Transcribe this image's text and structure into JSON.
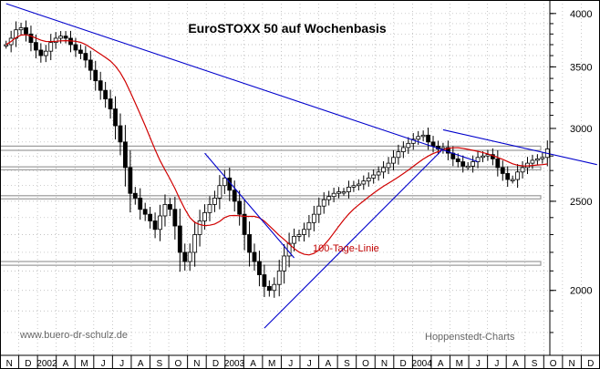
{
  "chart_data": {
    "type": "candlestick",
    "title": "EuroSTOXX 50 auf Wochenbasis",
    "xlabel": "",
    "ylabel": "",
    "y_scale": "log",
    "ylim": [
      1700,
      4100
    ],
    "y_ticks": [
      2000,
      2500,
      3000,
      3500,
      4000
    ],
    "x_labels": [
      "N",
      "D",
      "2002",
      "A",
      "M",
      "J",
      "J",
      "A",
      "S",
      "O",
      "N",
      "D",
      "2003",
      "A",
      "M",
      "J",
      "J",
      "A",
      "S",
      "O",
      "N",
      "D",
      "2004",
      "A",
      "M",
      "J",
      "J",
      "A",
      "S",
      "O",
      "N",
      "D"
    ],
    "grid": true,
    "series": [
      {
        "name": "EuroSTOXX 50",
        "style": "ohlc-candles",
        "color": "#000000",
        "values": [
          3700,
          3760,
          3840,
          3860,
          3800,
          3720,
          3650,
          3600,
          3640,
          3720,
          3760,
          3780,
          3760,
          3700,
          3650,
          3620,
          3560,
          3470,
          3380,
          3300,
          3230,
          3150,
          3020,
          2900,
          2720,
          2550,
          2520,
          2450,
          2420,
          2380,
          2330,
          2410,
          2480,
          2450,
          2350,
          2200,
          2150,
          2200,
          2300,
          2380,
          2430,
          2480,
          2520,
          2600,
          2650,
          2570,
          2500,
          2420,
          2300,
          2200,
          2150,
          2080,
          2020,
          2000,
          2030,
          2100,
          2180,
          2250,
          2290,
          2300,
          2330,
          2370,
          2420,
          2470,
          2510,
          2530,
          2550,
          2560,
          2560,
          2590,
          2600,
          2610,
          2630,
          2650,
          2670,
          2690,
          2720,
          2750,
          2790,
          2830,
          2860,
          2890,
          2920,
          2940,
          2950,
          2900,
          2870,
          2850,
          2860,
          2820,
          2780,
          2760,
          2730,
          2730,
          2760,
          2790,
          2800,
          2810,
          2780,
          2720,
          2680,
          2640,
          2640,
          2690,
          2720,
          2750,
          2770,
          2780,
          2790,
          2850
        ]
      },
      {
        "name": "100-Tage-Linie",
        "style": "moving-average",
        "color": "#d00000"
      }
    ],
    "annotations": [
      {
        "text": "100-Tage-Linie",
        "color": "#d00000"
      }
    ],
    "trendlines": [
      {
        "color": "#0000cc",
        "from": [
          0,
          4100
        ],
        "to": [
          95,
          2760
        ]
      },
      {
        "color": "#0000cc",
        "from": [
          40,
          2820
        ],
        "to": [
          58,
          2170
        ]
      },
      {
        "color": "#0000cc",
        "from": [
          52,
          1820
        ],
        "to": [
          88,
          2850
        ]
      },
      {
        "color": "#0000cc",
        "from": [
          88,
          2990
        ],
        "to": [
          119,
          2740
        ]
      }
    ],
    "horizontal_bands": [
      {
        "color": "#9a9a9a",
        "from": 2840,
        "to": 2870
      },
      {
        "color": "#9a9a9a",
        "from": 2705,
        "to": 2725
      },
      {
        "color": "#9a9a9a",
        "from": 2515,
        "to": 2535
      },
      {
        "color": "#9a9a9a",
        "from": 2130,
        "to": 2150
      }
    ]
  },
  "footer": {
    "left": "www.buero-dr-schulz.de",
    "right": "Hoppenstedt-Charts"
  },
  "colors": {
    "price": "#000000",
    "moving_average": "#d00000",
    "trendline": "#0000cc",
    "band": "#9a9a9a",
    "grid": "#b0b0b0"
  }
}
